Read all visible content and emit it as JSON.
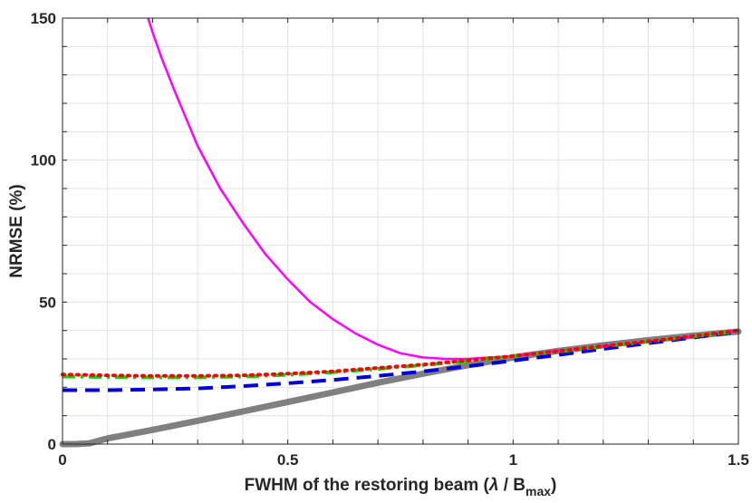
{
  "chart_data": {
    "type": "line",
    "title": "",
    "xlabel": {
      "main": "FWHM of the restoring beam (",
      "lambda": "λ",
      "slash": " / B",
      "sub": "max",
      "close": ")"
    },
    "ylabel": "NRMSE (%)",
    "xlim": [
      0,
      1.5
    ],
    "ylim": [
      0,
      150
    ],
    "xticks": [
      0,
      0.5,
      1,
      1.5
    ],
    "xtick_labels": [
      "0",
      "0.5",
      "1",
      "1.5"
    ],
    "yticks": [
      0,
      50,
      100,
      150
    ],
    "ytick_labels": [
      "0",
      "50",
      "100",
      "150"
    ],
    "grid": true,
    "series": [
      {
        "name": "magenta-solid",
        "color": "#ff00ff",
        "style": "solid",
        "x": [
          0.19,
          0.2,
          0.22,
          0.25,
          0.3,
          0.35,
          0.4,
          0.45,
          0.5,
          0.55,
          0.6,
          0.65,
          0.7,
          0.75,
          0.8,
          0.85,
          0.9,
          0.95,
          1.0,
          1.1,
          1.2,
          1.3,
          1.4,
          1.5
        ],
        "y": [
          150,
          145,
          136,
          124,
          105,
          90,
          78,
          67,
          58,
          50,
          44,
          39,
          35,
          32,
          30.5,
          30,
          30,
          30.5,
          31,
          33,
          34.5,
          36,
          38,
          40
        ]
      },
      {
        "name": "red-dotted",
        "color": "#ff0000",
        "style": "dotted",
        "x": [
          0,
          0.1,
          0.2,
          0.3,
          0.4,
          0.5,
          0.6,
          0.7,
          0.8,
          0.9,
          1.0,
          1.1,
          1.2,
          1.3,
          1.4,
          1.5
        ],
        "y": [
          24.5,
          24.2,
          24.0,
          24.0,
          24.2,
          24.8,
          25.6,
          26.8,
          28.0,
          29.5,
          31.0,
          32.7,
          34.5,
          36.2,
          38.0,
          40.0
        ]
      },
      {
        "name": "green-dashdot",
        "color": "#00dd00",
        "style": "dashdot",
        "x": [
          0,
          0.1,
          0.2,
          0.3,
          0.4,
          0.5,
          0.6,
          0.7,
          0.8,
          0.9,
          1.0,
          1.1,
          1.2,
          1.3,
          1.4,
          1.5
        ],
        "y": [
          23.8,
          23.6,
          23.5,
          23.5,
          23.8,
          24.4,
          25.3,
          26.5,
          27.8,
          29.3,
          30.9,
          32.6,
          34.4,
          36.1,
          37.9,
          39.8
        ]
      },
      {
        "name": "blue-dashed",
        "color": "#0000dd",
        "style": "dashed",
        "x": [
          0,
          0.1,
          0.2,
          0.3,
          0.4,
          0.5,
          0.6,
          0.7,
          0.8,
          0.9,
          1.0,
          1.1,
          1.2,
          1.3,
          1.4,
          1.5
        ],
        "y": [
          19.0,
          19.0,
          19.2,
          19.6,
          20.4,
          21.4,
          22.6,
          24.0,
          25.6,
          27.4,
          29.4,
          31.4,
          33.5,
          35.5,
          37.5,
          39.6
        ]
      },
      {
        "name": "gray-solid-thick",
        "color": "#808080",
        "style": "thick",
        "x": [
          0,
          0.03,
          0.06,
          0.1,
          0.2,
          0.3,
          0.4,
          0.5,
          0.6,
          0.7,
          0.8,
          0.9,
          1.0,
          1.1,
          1.2,
          1.3,
          1.4,
          1.5
        ],
        "y": [
          0,
          0,
          0.3,
          2.0,
          5.0,
          8.2,
          11.5,
          14.8,
          18.2,
          21.6,
          24.8,
          27.8,
          30.5,
          32.8,
          34.8,
          36.6,
          38.2,
          39.6
        ]
      }
    ]
  }
}
